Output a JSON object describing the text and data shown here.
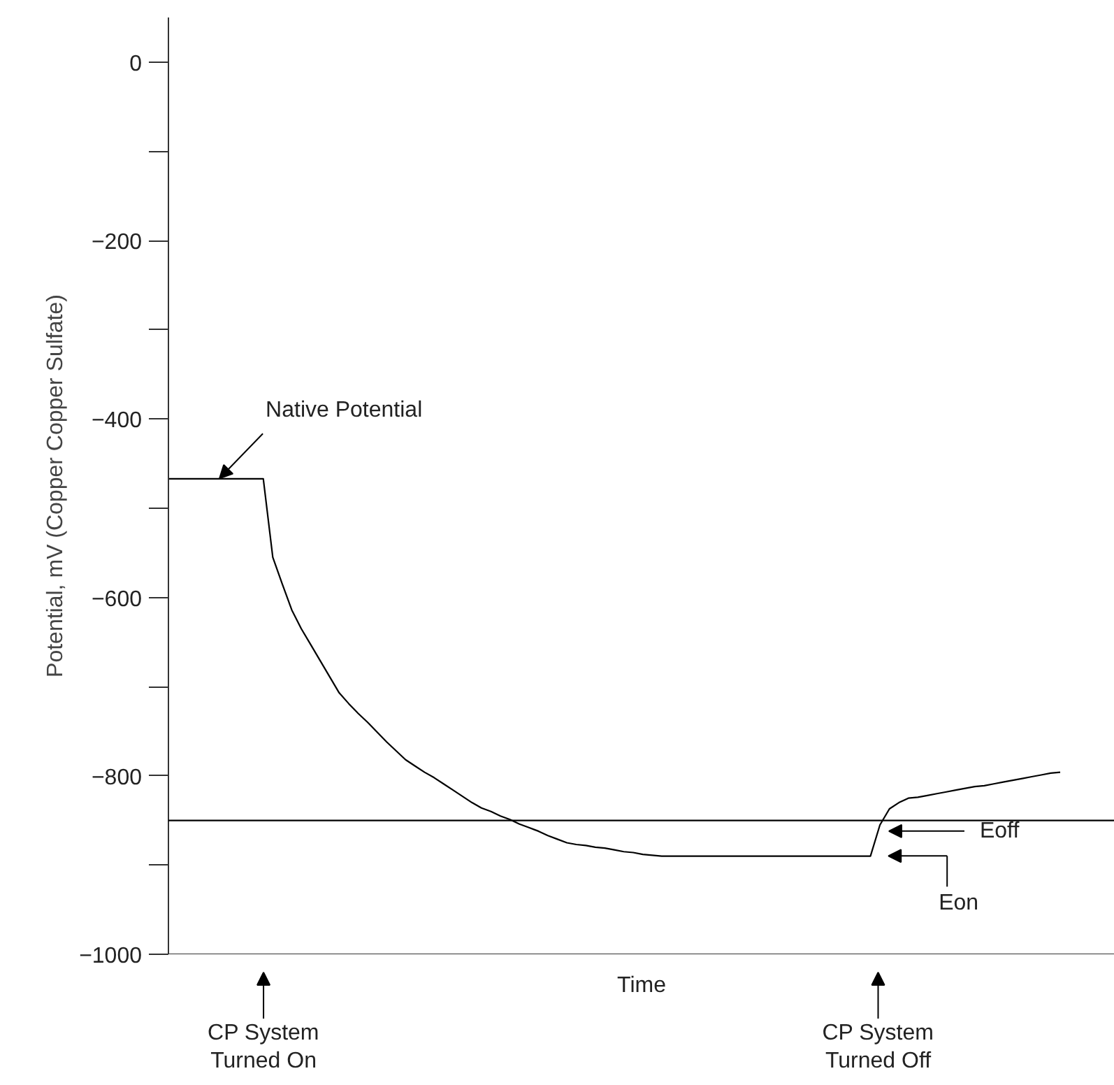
{
  "chart_data": {
    "type": "line",
    "xlabel": "Time",
    "ylabel": "Potential, mV (Copper Copper Sulfate)",
    "categories": [
      null,
      null,
      null,
      null,
      null,
      null,
      null,
      null,
      null,
      null,
      null,
      null,
      null,
      null,
      null,
      null,
      null,
      null,
      null,
      null,
      null,
      null,
      null,
      null,
      null,
      null,
      null,
      null,
      null,
      null,
      null,
      null,
      null,
      null,
      null,
      null,
      null,
      null,
      null,
      null,
      null,
      null,
      null,
      null,
      null,
      null,
      null,
      null,
      null,
      null,
      null,
      null,
      null,
      null,
      null,
      null,
      null,
      null,
      null,
      null,
      null,
      null,
      null,
      null,
      null,
      null,
      null,
      null,
      null,
      null,
      null,
      null,
      null,
      null,
      null,
      null,
      null,
      null,
      null,
      null,
      null,
      null,
      null,
      null,
      null,
      null,
      null,
      null,
      null,
      null,
      null,
      null,
      null,
      null,
      null
    ],
    "series": [
      {
        "color": "#000000",
        "values": [
          -467,
          -467,
          -467,
          -467,
          -467,
          -467,
          -467,
          -467,
          -467,
          -467,
          -467,
          -555,
          -585,
          -614,
          -635,
          -653,
          -671,
          -689,
          -707,
          -719,
          -730,
          -740,
          -751,
          -762,
          -772,
          -782,
          -789,
          -796,
          -802,
          -809,
          -816,
          -823,
          -830,
          -836,
          -840,
          -845,
          -849,
          -854,
          -858,
          -862,
          -867,
          -871,
          -875,
          -877,
          -878,
          -880,
          -881,
          -883,
          -885,
          -886,
          -888,
          -889,
          -890,
          -890,
          -890,
          -890,
          -890,
          -890,
          -890,
          -890,
          -890,
          -890,
          -890,
          -890,
          -890,
          -890,
          -890,
          -890,
          -890,
          -890,
          -890,
          -890,
          -890,
          -890,
          -890,
          -855,
          -837,
          -830,
          -825,
          -824,
          -822,
          -820,
          -818,
          -816,
          -814,
          -812,
          -811,
          -809,
          -807,
          -805,
          -803,
          -801,
          -799,
          -797,
          -796
        ]
      }
    ],
    "ylim": [
      -1000,
      50
    ],
    "yticks": [
      0,
      {
        "value": -100,
        "label": null
      },
      -200,
      {
        "value": -300,
        "label": null
      },
      -400,
      {
        "value": -500,
        "label": null
      },
      -600,
      {
        "value": -700,
        "label": null
      },
      -800,
      {
        "value": -900,
        "label": null
      },
      -1000
    ],
    "tick_labels": "y",
    "grid": false,
    "ref_lines": [
      {
        "axis": "y",
        "value": -850,
        "color": "#000000"
      }
    ],
    "annotations": [
      "Native Potential",
      "CP System\nTurned On",
      "CP System\nTurned Off",
      "Eoff",
      "Eon"
    ]
  }
}
